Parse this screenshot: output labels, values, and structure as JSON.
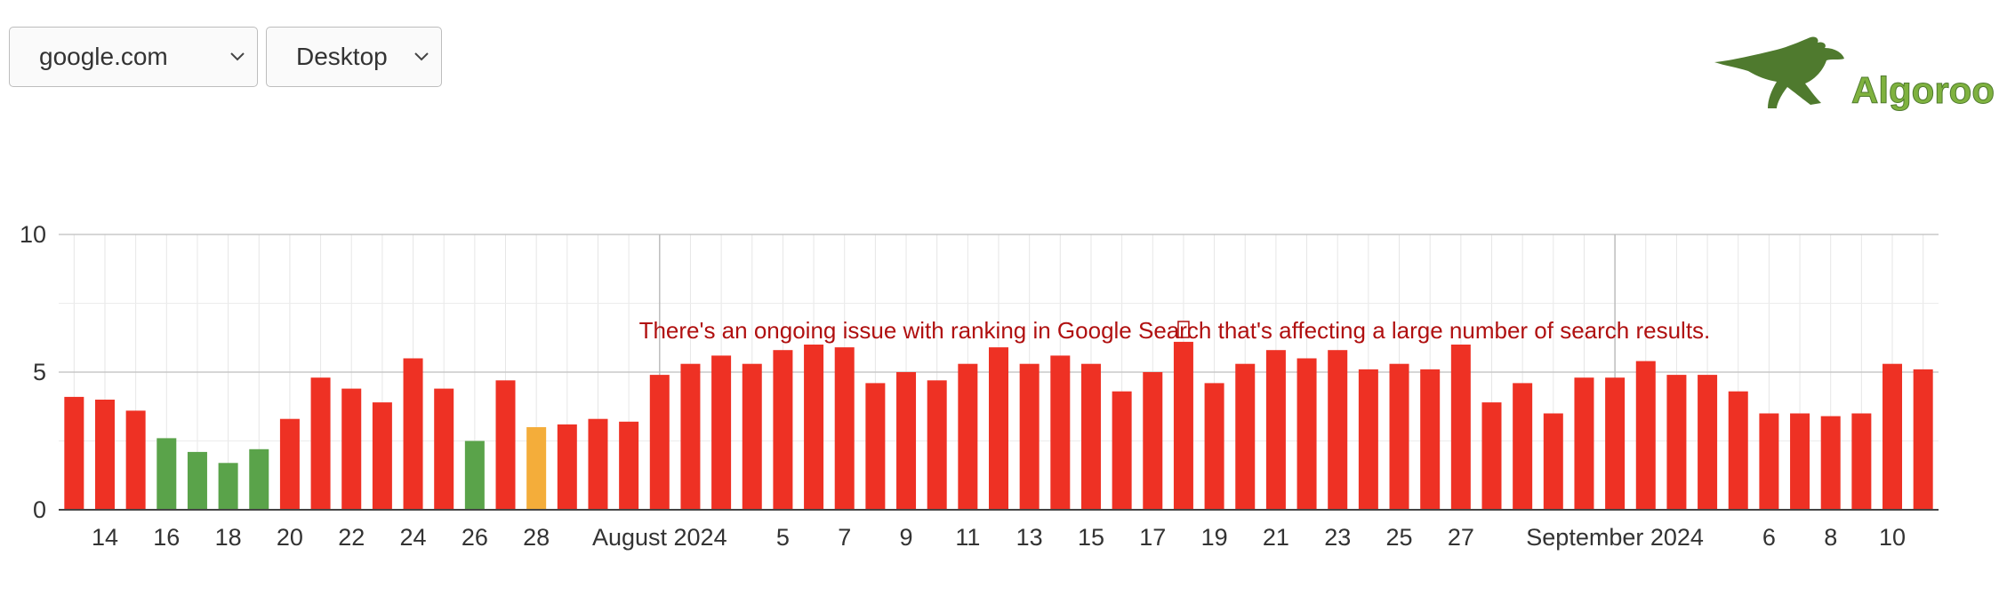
{
  "controls": {
    "site": {
      "selected": "google.com"
    },
    "device": {
      "selected": "Desktop"
    }
  },
  "brand": {
    "name": "Algoroo",
    "color_dark": "#4f7a2e",
    "color_light": "#7fb23f"
  },
  "colors": {
    "high": "#ee3124",
    "low": "#5aa34a",
    "medium": "#f4ad3a"
  },
  "chart_data": {
    "type": "bar",
    "ylim": [
      0,
      10
    ],
    "yticks": [
      0,
      5,
      10
    ],
    "grid": true,
    "x": [
      "2024-07-13",
      "2024-07-14",
      "2024-07-15",
      "2024-07-16",
      "2024-07-17",
      "2024-07-18",
      "2024-07-19",
      "2024-07-20",
      "2024-07-21",
      "2024-07-22",
      "2024-07-23",
      "2024-07-24",
      "2024-07-25",
      "2024-07-26",
      "2024-07-27",
      "2024-07-28",
      "2024-07-29",
      "2024-07-30",
      "2024-07-31",
      "2024-08-01",
      "2024-08-02",
      "2024-08-03",
      "2024-08-04",
      "2024-08-05",
      "2024-08-06",
      "2024-08-07",
      "2024-08-08",
      "2024-08-09",
      "2024-08-10",
      "2024-08-11",
      "2024-08-12",
      "2024-08-13",
      "2024-08-14",
      "2024-08-15",
      "2024-08-16",
      "2024-08-17",
      "2024-08-18",
      "2024-08-19",
      "2024-08-20",
      "2024-08-21",
      "2024-08-22",
      "2024-08-23",
      "2024-08-24",
      "2024-08-25",
      "2024-08-26",
      "2024-08-27",
      "2024-08-28",
      "2024-08-29",
      "2024-08-30",
      "2024-08-31",
      "2024-09-01",
      "2024-09-02",
      "2024-09-03",
      "2024-09-04",
      "2024-09-05",
      "2024-09-06",
      "2024-09-07",
      "2024-09-08",
      "2024-09-09",
      "2024-09-10",
      "2024-09-11"
    ],
    "values": [
      4.1,
      4.0,
      3.6,
      2.6,
      2.1,
      1.7,
      2.2,
      3.3,
      4.8,
      4.4,
      3.9,
      5.5,
      4.4,
      2.5,
      4.7,
      3.0,
      3.1,
      3.3,
      3.2,
      4.9,
      5.3,
      5.6,
      5.3,
      5.8,
      6.0,
      5.9,
      4.6,
      5.0,
      4.7,
      5.3,
      5.9,
      5.3,
      5.6,
      5.3,
      4.3,
      5.0,
      6.1,
      4.6,
      5.3,
      5.8,
      5.5,
      5.8,
      5.1,
      5.3,
      5.1,
      6.0,
      3.9,
      4.6,
      3.5,
      4.8,
      4.8,
      5.4,
      4.9,
      4.9,
      4.3,
      3.5,
      3.5,
      3.4,
      3.5,
      5.3,
      5.1
    ],
    "xticks": [
      {
        "index": 1,
        "label": "14"
      },
      {
        "index": 3,
        "label": "16"
      },
      {
        "index": 5,
        "label": "18"
      },
      {
        "index": 7,
        "label": "20"
      },
      {
        "index": 9,
        "label": "22"
      },
      {
        "index": 11,
        "label": "24"
      },
      {
        "index": 13,
        "label": "26"
      },
      {
        "index": 15,
        "label": "28"
      },
      {
        "index": 19,
        "label": "August 2024"
      },
      {
        "index": 23,
        "label": "5"
      },
      {
        "index": 25,
        "label": "7"
      },
      {
        "index": 27,
        "label": "9"
      },
      {
        "index": 29,
        "label": "11"
      },
      {
        "index": 31,
        "label": "13"
      },
      {
        "index": 33,
        "label": "15"
      },
      {
        "index": 35,
        "label": "17"
      },
      {
        "index": 37,
        "label": "19"
      },
      {
        "index": 39,
        "label": "21"
      },
      {
        "index": 41,
        "label": "23"
      },
      {
        "index": 43,
        "label": "25"
      },
      {
        "index": 45,
        "label": "27"
      },
      {
        "index": 50,
        "label": "September 2024"
      },
      {
        "index": 55,
        "label": "6"
      },
      {
        "index": 57,
        "label": "8"
      },
      {
        "index": 59,
        "label": "10"
      }
    ],
    "annotation": {
      "text": "There's an ongoing issue with ranking in Google Search that's affecting a large number of search results.",
      "index": 36,
      "color": "#b01010"
    }
  }
}
